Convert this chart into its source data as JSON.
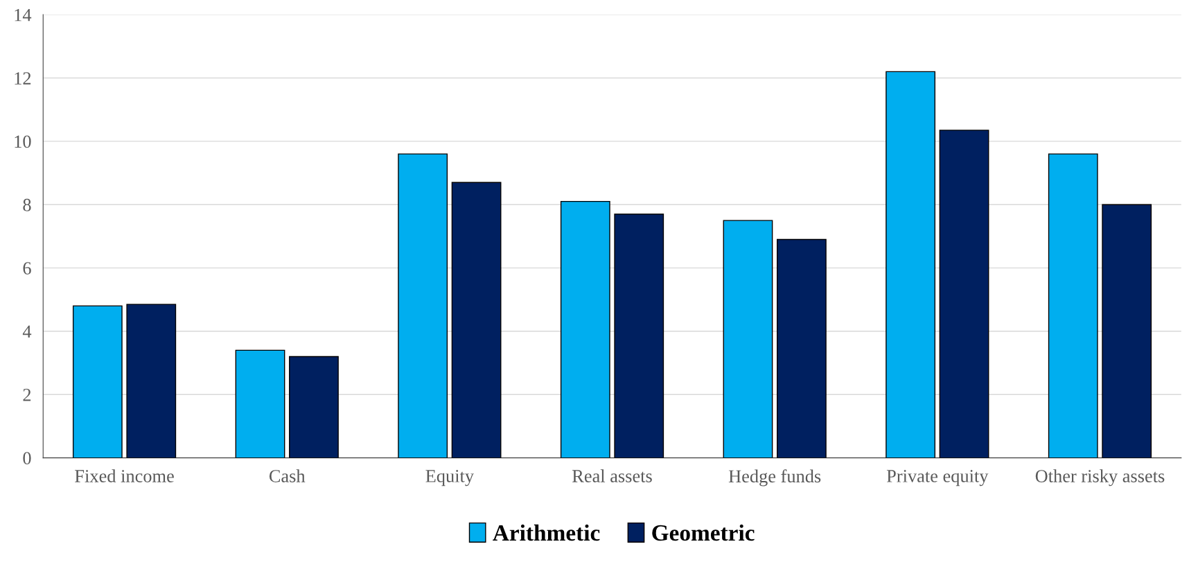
{
  "chart_data": {
    "type": "bar",
    "categories": [
      "Fixed income",
      "Cash",
      "Equity",
      "Real assets",
      "Hedge funds",
      "Private equity",
      "Other risky assets"
    ],
    "series": [
      {
        "name": "Arithmetic",
        "color": "#00aeef",
        "values": [
          4.8,
          3.4,
          9.6,
          8.1,
          7.5,
          12.2,
          9.6
        ]
      },
      {
        "name": "Geometric",
        "color": "#002060",
        "values": [
          4.85,
          3.2,
          8.7,
          7.7,
          6.9,
          10.35,
          8.0
        ]
      }
    ],
    "ylim": [
      0,
      14
    ],
    "yticks": [
      0,
      2,
      4,
      6,
      8,
      10,
      12,
      14
    ],
    "grid": "y",
    "legend": "bottom"
  }
}
